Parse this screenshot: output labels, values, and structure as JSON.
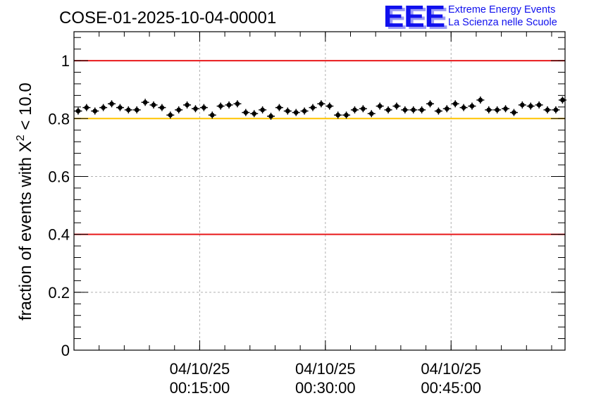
{
  "title": "COSE-01-2025-10-04-00001",
  "logo": {
    "mark": "EEE",
    "line1": "Extreme Energy Events",
    "line2": "La Scienza nelle Scuole",
    "color": "#1010ee"
  },
  "chart_data": {
    "type": "scatter",
    "ylabel_main": "fraction of events with X",
    "ylabel_sup": "2",
    "ylabel_tail": " < 10.0",
    "ylim": [
      0,
      1.1
    ],
    "yticks": [
      0,
      0.2,
      0.4,
      0.6,
      0.8,
      1
    ],
    "ytick_labels": [
      "0",
      "0.2",
      "0.4",
      "0.6",
      "0.8",
      "1"
    ],
    "xlim_minutes": [
      0,
      58.6
    ],
    "xticks": [
      {
        "minute": 15,
        "date": "04/10/25",
        "time": "00:15:00"
      },
      {
        "minute": 30,
        "date": "04/10/25",
        "time": "00:30:00"
      },
      {
        "minute": 45,
        "date": "04/10/25",
        "time": "00:45:00"
      }
    ],
    "grid": true,
    "reference_lines": [
      {
        "y": 1.0,
        "color": "#e8191b"
      },
      {
        "y": 0.8,
        "color": "#ffc400"
      },
      {
        "y": 0.4,
        "color": "#e8191b"
      }
    ],
    "point_color": "#000000",
    "series": [
      {
        "x_minutes": [
          0.5,
          1.5,
          2.5,
          3.5,
          4.5,
          5.5,
          6.5,
          7.5,
          8.5,
          9.5,
          10.5,
          11.5,
          12.5,
          13.5,
          14.5,
          15.5,
          16.5,
          17.5,
          18.5,
          19.5,
          20.5,
          21.5,
          22.5,
          23.5,
          24.5,
          25.5,
          26.5,
          27.5,
          28.5,
          29.5,
          30.5,
          31.5,
          32.5,
          33.5,
          34.5,
          35.5,
          36.5,
          37.5,
          38.5,
          39.5,
          40.5,
          41.5,
          42.5,
          43.5,
          44.5,
          45.5,
          46.5,
          47.5,
          48.5,
          49.5,
          50.5,
          51.5,
          52.5,
          53.5,
          54.5,
          55.5,
          56.5,
          57.5,
          58.3
        ],
        "y": [
          0.826,
          0.838,
          0.826,
          0.838,
          0.851,
          0.838,
          0.83,
          0.83,
          0.856,
          0.847,
          0.838,
          0.812,
          0.83,
          0.847,
          0.834,
          0.838,
          0.812,
          0.843,
          0.847,
          0.851,
          0.821,
          0.817,
          0.83,
          0.808,
          0.838,
          0.826,
          0.821,
          0.826,
          0.838,
          0.851,
          0.843,
          0.812,
          0.812,
          0.83,
          0.834,
          0.817,
          0.843,
          0.83,
          0.843,
          0.83,
          0.83,
          0.83,
          0.851,
          0.826,
          0.834,
          0.851,
          0.838,
          0.843,
          0.864,
          0.83,
          0.83,
          0.834,
          0.821,
          0.847,
          0.843,
          0.847,
          0.83,
          0.83,
          0.864
        ]
      }
    ]
  }
}
